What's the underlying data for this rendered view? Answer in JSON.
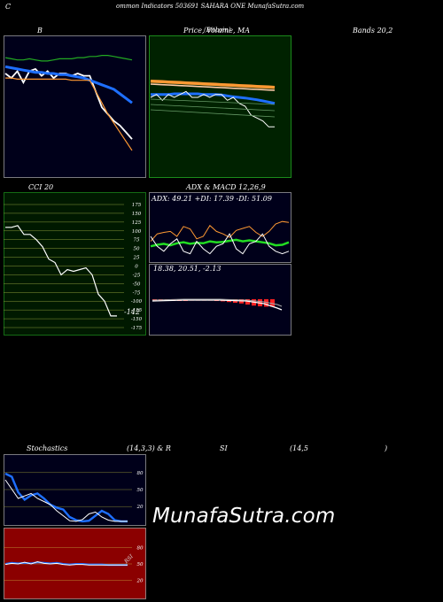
{
  "header": {
    "c": "C",
    "title": "ommon  Indicators 503691 SAHARA ONE MunafaSutra.com"
  },
  "labels": {
    "b": "B",
    "price": "Price,  Volume,  MA",
    "price_overlay": "(Bitcoin)",
    "bands": "Bands 20,2",
    "cci": "CCI 20",
    "adx": "ADX  & MACD 12,26,9",
    "adx_values": "ADX: 49.21  +DI: 17.39 -DI: 51.09",
    "macd_values": "18.38,  20.51,  -2.13",
    "stoch": "Stochastics",
    "stoch_params": "(14,3,3) & R",
    "rsi": "SI",
    "rsi_params": "(14,5",
    "rsi_close": ")",
    "cci_last": "-142",
    "rsi_mark": "RSI"
  },
  "watermark": "MunafaSutra.com",
  "colors": {
    "navy_bg": "#00001a",
    "green_bg": "#002200",
    "cci_bg": "#001900",
    "rsi_bg": "#8b0000",
    "orange": "#ff9933",
    "blue": "#1e6fff",
    "green": "#22dd22",
    "white": "#ffffff"
  },
  "chart_data": [
    {
      "type": "line",
      "panel": "bollinger",
      "series": [
        {
          "color": "#ffffff",
          "values": [
            5.8,
            5.6,
            5.9,
            5.4,
            5.9,
            6.0,
            5.7,
            5.9,
            5.6,
            5.8,
            5.8,
            5.7,
            5.8,
            5.7,
            5.7,
            5.0,
            4.3,
            4.0,
            3.7,
            3.5,
            3.2,
            2.9
          ]
        },
        {
          "color": "#1e6fff",
          "values": [
            6.1,
            6.05,
            6.0,
            5.95,
            5.9,
            5.85,
            5.85,
            5.8,
            5.8,
            5.75,
            5.75,
            5.7,
            5.65,
            5.6,
            5.5,
            5.4,
            5.3,
            5.2,
            5.1,
            4.9,
            4.7,
            4.5
          ]
        },
        {
          "color": "#22aa22",
          "values": [
            6.5,
            6.45,
            6.4,
            6.4,
            6.45,
            6.4,
            6.35,
            6.35,
            6.4,
            6.45,
            6.45,
            6.45,
            6.5,
            6.5,
            6.55,
            6.55,
            6.6,
            6.6,
            6.55,
            6.5,
            6.45,
            6.4
          ]
        },
        {
          "color": "#ff9933",
          "values": [
            5.6,
            5.6,
            5.55,
            5.55,
            5.55,
            5.55,
            5.55,
            5.55,
            5.55,
            5.55,
            5.55,
            5.5,
            5.5,
            5.5,
            5.5,
            5.0,
            4.5,
            4.0,
            3.6,
            3.2,
            2.8,
            2.4
          ]
        }
      ]
    },
    {
      "type": "line",
      "panel": "price_ma",
      "series": [
        {
          "color": "#ff9933",
          "values": [
            5.95,
            5.94,
            5.93,
            5.92,
            5.91,
            5.9,
            5.89,
            5.88,
            5.87,
            5.86,
            5.85,
            5.84,
            5.83,
            5.82,
            5.81,
            5.8,
            5.79,
            5.78,
            5.77,
            5.76,
            5.75,
            5.74
          ]
        },
        {
          "color": "#ffccaa",
          "values": [
            5.85,
            5.84,
            5.83,
            5.82,
            5.81,
            5.8,
            5.79,
            5.78,
            5.77,
            5.76,
            5.75,
            5.74,
            5.73,
            5.72,
            5.71,
            5.7,
            5.69,
            5.68,
            5.67,
            5.66,
            5.65,
            5.64
          ]
        },
        {
          "color": "#1e6fff",
          "values": [
            5.5,
            5.5,
            5.5,
            5.5,
            5.52,
            5.52,
            5.52,
            5.52,
            5.52,
            5.5,
            5.5,
            5.5,
            5.48,
            5.45,
            5.42,
            5.4,
            5.38,
            5.35,
            5.32,
            5.28,
            5.24,
            5.2
          ]
        },
        {
          "color": "#ffffff",
          "values": [
            5.4,
            5.5,
            5.3,
            5.5,
            5.4,
            5.5,
            5.6,
            5.4,
            5.4,
            5.5,
            5.4,
            5.5,
            5.5,
            5.3,
            5.4,
            5.2,
            5.1,
            4.8,
            4.7,
            4.6,
            4.4,
            4.4
          ]
        }
      ]
    },
    {
      "type": "line",
      "panel": "cci",
      "ylim": [
        -175,
        175
      ],
      "ticks": [
        175,
        150,
        125,
        100,
        75,
        50,
        25,
        0,
        -25,
        -50,
        -75,
        -100,
        -125,
        -150,
        -175
      ],
      "series": [
        {
          "color": "#ffffff",
          "values": [
            110,
            110,
            115,
            90,
            90,
            75,
            55,
            20,
            10,
            -25,
            -10,
            -15,
            -10,
            -5,
            -25,
            -80,
            -100,
            -142,
            -142
          ]
        }
      ]
    },
    {
      "type": "line",
      "panel": "adx",
      "series": [
        {
          "color": "#22dd22",
          "values": [
            30,
            33,
            35,
            32,
            36,
            38,
            35,
            37,
            36,
            40,
            38,
            39,
            41,
            43,
            40,
            42,
            40,
            38,
            36,
            32,
            33,
            38
          ]
        },
        {
          "color": "#ff9933",
          "values": [
            40,
            55,
            58,
            60,
            50,
            70,
            65,
            45,
            50,
            72,
            60,
            55,
            48,
            62,
            66,
            70,
            58,
            50,
            60,
            75,
            80,
            78
          ]
        },
        {
          "color": "#ffffff",
          "values": [
            50,
            30,
            20,
            35,
            45,
            20,
            15,
            40,
            25,
            15,
            30,
            35,
            55,
            25,
            15,
            35,
            40,
            55,
            30,
            20,
            15,
            20
          ]
        }
      ]
    },
    {
      "type": "bar",
      "panel": "macd_hist",
      "values": [
        -0.5,
        -0.5,
        -0.5,
        -0.5,
        -0.5,
        -0.5,
        -0.4,
        -0.4,
        -0.4,
        -0.4,
        -0.5,
        -0.6,
        -0.8,
        -1.0,
        -1.2,
        -1.5,
        -1.8,
        -2.0,
        -2.1,
        -2.13
      ]
    },
    {
      "type": "line",
      "panel": "stochastics",
      "ticks": [
        80,
        50,
        20
      ],
      "series": [
        {
          "color": "#1e6fff",
          "values": [
            80,
            75,
            50,
            38,
            45,
            48,
            40,
            30,
            25,
            22,
            10,
            5,
            3,
            4,
            12,
            20,
            15,
            5,
            3,
            3
          ]
        },
        {
          "color": "#ffffff",
          "values": [
            70,
            55,
            40,
            44,
            48,
            40,
            35,
            30,
            20,
            12,
            4,
            3,
            6,
            15,
            18,
            10,
            5,
            3,
            3,
            3
          ]
        }
      ]
    },
    {
      "type": "line",
      "panel": "rsi",
      "ticks": [
        80,
        50,
        20
      ],
      "series": [
        {
          "color": "#1e6fff",
          "values": [
            50,
            52,
            51,
            52,
            51,
            53,
            52,
            51,
            52,
            50,
            49,
            50,
            50,
            49,
            49,
            49,
            48,
            48,
            48,
            48
          ]
        },
        {
          "color": "#ffffff",
          "values": [
            49,
            51,
            50,
            53,
            50,
            54,
            51,
            50,
            51,
            49,
            48,
            49,
            49,
            48,
            48,
            48,
            48,
            48,
            48,
            48
          ]
        }
      ]
    }
  ]
}
